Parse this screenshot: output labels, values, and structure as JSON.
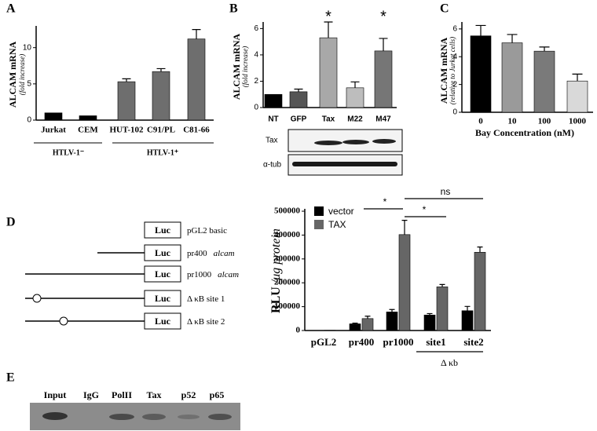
{
  "panel_labels": [
    "A",
    "B",
    "C",
    "D",
    "E"
  ],
  "chart_data": [
    {
      "type": "bar",
      "ylabel": "ALCAM mRNA",
      "ylabel_note": "(fold increase)",
      "categories": [
        "Jurkat",
        "CEM",
        "HUT-102",
        "C91/PL",
        "C81-66"
      ],
      "series": [
        {
          "colors": [
            "#000000",
            "#000000",
            "#6e6e6e",
            "#6e6e6e",
            "#6e6e6e"
          ],
          "values": [
            1.0,
            0.6,
            5.3,
            6.7,
            11.2
          ],
          "errors": [
            0,
            0,
            0.4,
            0.4,
            1.3
          ]
        }
      ],
      "ylim": [
        0,
        13
      ],
      "yticks": [
        0,
        5,
        10
      ],
      "group_labels": [
        "HTLV-1⁻",
        "HTLV-1⁺"
      ]
    },
    {
      "type": "bar",
      "ylabel": "ALCAM mRNA",
      "ylabel_note": "(fold increase)",
      "categories": [
        "NT",
        "GFP",
        "Tax",
        "M22",
        "M47"
      ],
      "series": [
        {
          "colors": [
            "#000000",
            "#555555",
            "#a8a8a8",
            "#bdbdbd",
            "#767676"
          ],
          "values": [
            1.0,
            1.2,
            5.3,
            1.5,
            4.3
          ],
          "errors": [
            0,
            0.2,
            1.2,
            0.45,
            0.95
          ]
        }
      ],
      "ylim": [
        0,
        6.5
      ],
      "yticks": [
        0,
        2,
        4,
        6
      ],
      "annotations": [
        "*",
        "*"
      ]
    },
    {
      "type": "bar",
      "ylabel": "ALCAM mRNA",
      "ylabel_note": "(relative to Jurkat cells)",
      "xlabel": "Bay Concentration (nM)",
      "categories": [
        "0",
        "10",
        "100",
        "1000"
      ],
      "series": [
        {
          "colors": [
            "#000000",
            "#9a9a9a",
            "#7a7a7a",
            "#d9d9d9"
          ],
          "values": [
            5.5,
            5.0,
            4.4,
            2.25
          ],
          "errors": [
            0.75,
            0.6,
            0.3,
            0.5
          ]
        }
      ],
      "ylim": [
        0,
        6.5
      ],
      "yticks": [
        0,
        2,
        4,
        6
      ]
    },
    {
      "type": "bar",
      "ylabel": "RLU",
      "ylabel_note": "/μg protein",
      "categories": [
        "pGL2",
        "pr400",
        "pr1000",
        "site1",
        "site2"
      ],
      "series": [
        {
          "name": "vector",
          "color": "#000000",
          "values": [
            500,
            28000,
            78000,
            65000,
            83000
          ],
          "errors": [
            0,
            3000,
            10000,
            6000,
            18000
          ]
        },
        {
          "name": "TAX",
          "color": "#666666",
          "values": [
            1000,
            50000,
            402000,
            183000,
            328000
          ],
          "errors": [
            0,
            10000,
            60000,
            10000,
            22000
          ]
        }
      ],
      "ylim": [
        0,
        510000
      ],
      "yticks": [
        0,
        100000,
        200000,
        300000,
        400000,
        500000
      ],
      "annotations": [
        "*",
        "*",
        "ns"
      ],
      "group_labels": [
        "Δ κb"
      ]
    }
  ],
  "blot_b": {
    "rows": [
      "Tax",
      "α-tub"
    ]
  },
  "diagram_d": {
    "constructs": [
      {
        "box": "Luc",
        "name": "pGL2 basic"
      },
      {
        "box": "Luc",
        "name": "pr400",
        "gene": "alcam"
      },
      {
        "box": "Luc",
        "name": "pr1000",
        "gene": "alcam"
      },
      {
        "box": "Luc",
        "name": "Δ κB site 1"
      },
      {
        "box": "Luc",
        "name": "Δ κB site 2"
      }
    ]
  },
  "chip_e": {
    "lanes": [
      "Input",
      "IgG",
      "PolII",
      "Tax",
      "p52",
      "p65"
    ]
  }
}
